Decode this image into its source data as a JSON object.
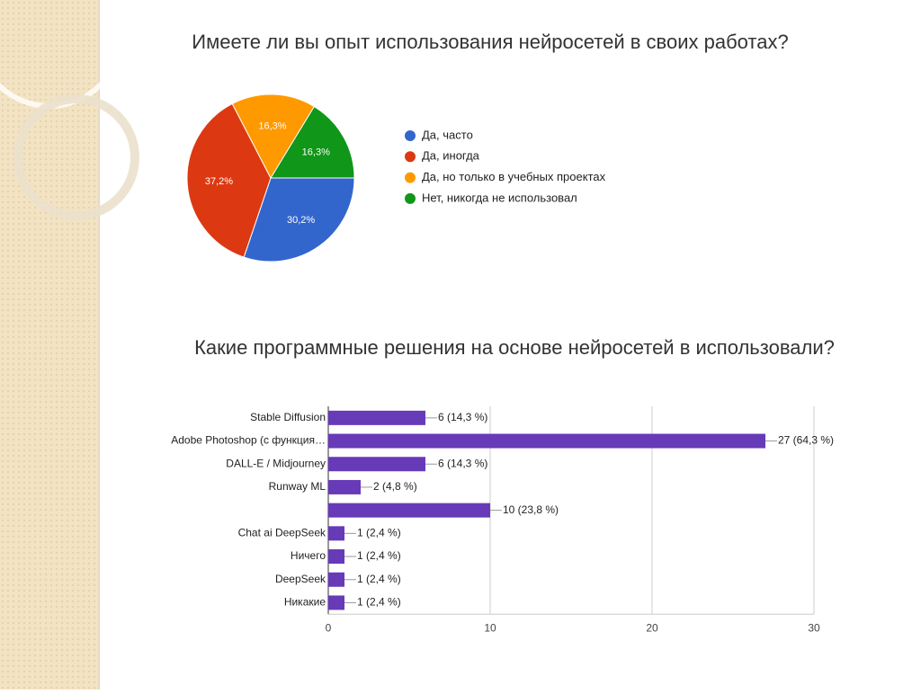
{
  "chart_data": [
    {
      "type": "pie",
      "title": "Имеете ли вы опыт использования нейросетей в своих работах?",
      "series": [
        {
          "name": "Да, часто",
          "color": "#3366cc",
          "values": [
            30.2
          ],
          "value_labels": [
            "30,2%"
          ]
        },
        {
          "name": "Да, иногда",
          "color": "#dc3912",
          "values": [
            37.2
          ],
          "value_labels": [
            "37,2%"
          ]
        },
        {
          "name": "Да, но только в учебных проектах",
          "color": "#ff9900",
          "values": [
            16.3
          ],
          "value_labels": [
            "16,3%"
          ]
        },
        {
          "name": "Нет, никогда не использовал",
          "color": "#109618",
          "values": [
            16.3
          ],
          "value_labels": [
            "16,3%"
          ]
        }
      ]
    },
    {
      "type": "hbar",
      "title": "Какие программные решения на основе нейросетей в использовали?",
      "categories": [
        "Stable Diffusion",
        "Adobe Photoshop (с функция…",
        "DALL-E / Midjourney",
        "Runway ML",
        null,
        "Chat ai DeepSeek",
        "Ничего",
        "DeepSeek",
        "Никакие"
      ],
      "values": [
        6,
        27,
        6,
        2,
        10,
        1,
        1,
        1,
        1
      ],
      "value_labels": [
        "6 (14,3 %)",
        "27 (64,3 %)",
        "6 (14,3 %)",
        "2 (4,8 %)",
        "10 (23,8 %)",
        "1 (2,4 %)",
        "1 (2,4 %)",
        "1 (2,4 %)",
        "1 (2,4 %)"
      ],
      "color": "#673ab7",
      "xlim": [
        0,
        30
      ],
      "xticks": [
        0,
        10,
        20,
        30
      ],
      "grid": true
    }
  ]
}
